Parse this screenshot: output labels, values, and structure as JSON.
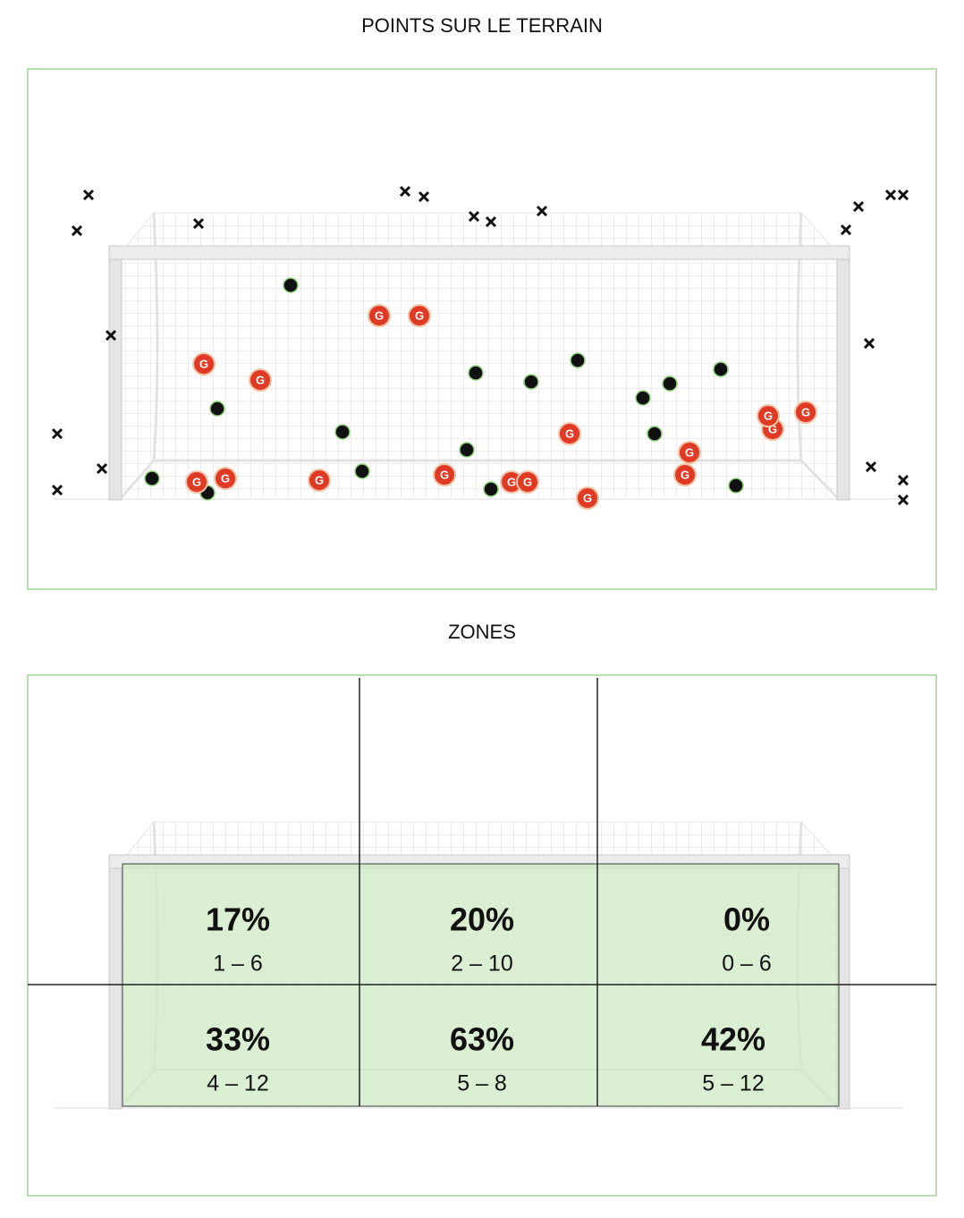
{
  "titles": {
    "shots": "POINTS SUR LE TERRAIN",
    "zones": "ZONES"
  },
  "goal_marker_label": "G",
  "zones": [
    {
      "percent": "17%",
      "range": "1 – 6"
    },
    {
      "percent": "20%",
      "range": "2 – 10"
    },
    {
      "percent": "0%",
      "range": "0 – 6"
    },
    {
      "percent": "33%",
      "range": "4 – 12"
    },
    {
      "percent": "63%",
      "range": "5 – 8"
    },
    {
      "percent": "42%",
      "range": "5 – 12"
    }
  ]
}
